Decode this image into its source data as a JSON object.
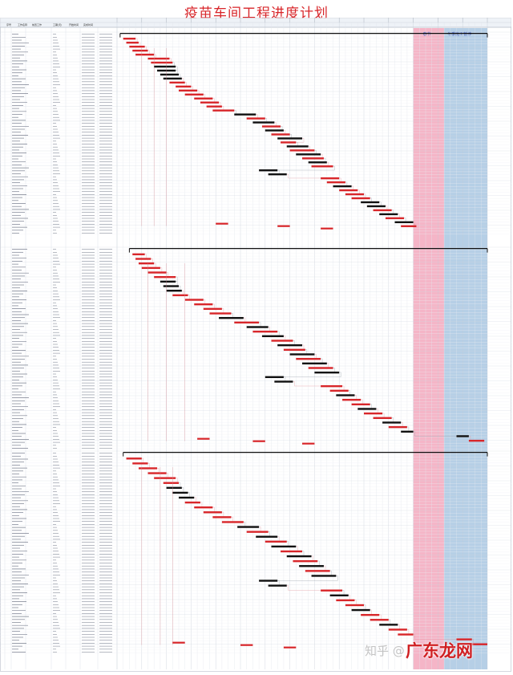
{
  "page": {
    "title": "疫苗车间工程进度计划"
  },
  "colors": {
    "critical": "#d8262a",
    "normal": "#111111",
    "holiday_pink": "#f3a8bd",
    "holiday_blue": "#a9c7e2",
    "grid": "#d7dce6",
    "text": "#333333"
  },
  "chart_data": {
    "type": "gantt",
    "title": "疫苗车间工程进度计划",
    "columns": [
      "序号",
      "工作名称",
      "前置工作",
      "工期(天)",
      "开始时间",
      "完成时间"
    ],
    "timeline": {
      "start_week": 0,
      "end_week": 60,
      "unit": "week"
    },
    "holidays": [
      {
        "name": "春节",
        "start_week": 48,
        "end_week": 53,
        "color": "pink"
      },
      {
        "name": "冬季施工暂停",
        "start_week": 53,
        "end_week": 60,
        "color": "blue"
      }
    ],
    "sections": [
      {
        "rows": 68,
        "summary": {
          "start_week": 0.5,
          "end_week": 60
        },
        "tasks": [
          [
            1,
            3,
            "c"
          ],
          [
            1.5,
            3.5,
            "c"
          ],
          [
            2,
            4.5,
            "c"
          ],
          [
            2.5,
            5,
            "c"
          ],
          [
            3,
            6,
            "c"
          ],
          [
            5,
            8.5,
            "c"
          ],
          [
            5.5,
            9,
            "c"
          ],
          [
            6,
            9.5,
            "n"
          ],
          [
            6.5,
            9.5,
            "n"
          ],
          [
            7,
            10,
            "n"
          ],
          [
            7.5,
            10.5,
            "n"
          ],
          [
            8.5,
            11,
            "c"
          ],
          [
            9.5,
            12,
            "c"
          ],
          [
            10,
            13,
            "c"
          ],
          [
            11,
            14,
            "c"
          ],
          [
            12.5,
            15.5,
            "c"
          ],
          [
            13.5,
            16.5,
            "c"
          ],
          [
            14.5,
            17,
            "c"
          ],
          [
            15.5,
            19,
            "c"
          ],
          [
            19,
            22.5,
            "n"
          ],
          [
            21,
            24,
            "c"
          ],
          [
            22,
            25.5,
            "n"
          ],
          [
            23.5,
            26.5,
            "c"
          ],
          [
            24,
            27,
            "n"
          ],
          [
            25,
            28,
            "c"
          ],
          [
            26,
            30,
            "n"
          ],
          [
            26.5,
            29,
            "c"
          ],
          [
            27.5,
            31,
            "n"
          ],
          [
            28,
            32,
            "c"
          ],
          [
            29,
            33,
            "n"
          ],
          [
            30,
            33.5,
            "c"
          ],
          [
            31,
            34,
            "n"
          ],
          [
            31.5,
            35,
            "c"
          ],
          [
            23,
            26,
            "n"
          ],
          [
            24.5,
            27.5,
            "n"
          ],
          [
            33,
            36,
            "c"
          ],
          [
            34,
            37,
            "c"
          ],
          [
            35,
            38,
            "n"
          ],
          [
            36,
            39,
            "c"
          ],
          [
            37,
            40,
            "c"
          ],
          [
            38,
            41,
            "c"
          ],
          [
            39.5,
            42.5,
            "n"
          ],
          [
            40.5,
            43.5,
            "n"
          ],
          [
            41.5,
            44.5,
            "c"
          ],
          [
            42.5,
            45.5,
            "n"
          ],
          [
            43.5,
            46.5,
            "c"
          ],
          [
            45,
            48,
            "n"
          ],
          [
            46,
            48.5,
            "c"
          ]
        ]
      },
      {
        "rows": 68,
        "summary": {
          "start_week": 2,
          "end_week": 60
        },
        "tasks": [
          [
            2.5,
            4.5,
            "c"
          ],
          [
            3,
            5.5,
            "c"
          ],
          [
            3.5,
            6,
            "c"
          ],
          [
            4,
            7,
            "c"
          ],
          [
            5,
            8,
            "c"
          ],
          [
            6,
            9.5,
            "c"
          ],
          [
            7,
            9.5,
            "n"
          ],
          [
            7.5,
            10,
            "n"
          ],
          [
            8,
            10.5,
            "n"
          ],
          [
            9,
            11.5,
            "c"
          ],
          [
            11,
            14,
            "c"
          ],
          [
            12.5,
            15.5,
            "c"
          ],
          [
            14,
            17,
            "c"
          ],
          [
            15,
            18.5,
            "c"
          ],
          [
            16.5,
            20.5,
            "n"
          ],
          [
            19,
            23,
            "c"
          ],
          [
            21,
            24.5,
            "n"
          ],
          [
            22,
            26,
            "c"
          ],
          [
            23.5,
            27,
            "n"
          ],
          [
            25,
            28.5,
            "c"
          ],
          [
            26,
            30,
            "n"
          ],
          [
            27,
            30.5,
            "c"
          ],
          [
            28,
            32,
            "n"
          ],
          [
            29,
            33,
            "c"
          ],
          [
            30,
            34,
            "n"
          ],
          [
            31,
            35,
            "c"
          ],
          [
            32,
            36,
            "n"
          ],
          [
            24,
            27,
            "n"
          ],
          [
            25.5,
            28.5,
            "n"
          ],
          [
            33,
            36.5,
            "c"
          ],
          [
            34.5,
            37.5,
            "c"
          ],
          [
            35.5,
            38.5,
            "n"
          ],
          [
            36.5,
            39.5,
            "c"
          ],
          [
            38,
            41,
            "c"
          ],
          [
            39,
            42,
            "n"
          ],
          [
            40,
            43,
            "c"
          ],
          [
            41.5,
            44.5,
            "c"
          ],
          [
            43,
            46,
            "n"
          ],
          [
            44,
            47,
            "c"
          ],
          [
            46,
            48,
            "n"
          ],
          [
            55,
            57,
            "n"
          ],
          [
            57,
            59.5,
            "c"
          ]
        ]
      },
      {
        "rows": 68,
        "summary": {
          "start_week": 1,
          "end_week": 60
        },
        "tasks": [
          [
            1.5,
            4,
            "c"
          ],
          [
            2.5,
            5,
            "c"
          ],
          [
            3.5,
            6.5,
            "c"
          ],
          [
            5,
            8,
            "c"
          ],
          [
            6,
            9.5,
            "c"
          ],
          [
            7.5,
            10,
            "c"
          ],
          [
            8,
            10.5,
            "n"
          ],
          [
            9,
            11.5,
            "n"
          ],
          [
            10,
            12.5,
            "n"
          ],
          [
            11,
            13.5,
            "c"
          ],
          [
            12.5,
            15.5,
            "c"
          ],
          [
            14,
            17,
            "c"
          ],
          [
            15.5,
            18.5,
            "c"
          ],
          [
            17,
            20.5,
            "c"
          ],
          [
            19.5,
            23,
            "n"
          ],
          [
            21,
            24.5,
            "c"
          ],
          [
            22.5,
            26,
            "n"
          ],
          [
            24,
            27.5,
            "c"
          ],
          [
            25,
            29,
            "n"
          ],
          [
            26.5,
            30,
            "c"
          ],
          [
            27.5,
            31.5,
            "n"
          ],
          [
            28.5,
            32.5,
            "c"
          ],
          [
            29.5,
            33.5,
            "n"
          ],
          [
            30.5,
            34.5,
            "c"
          ],
          [
            31.5,
            35.5,
            "n"
          ],
          [
            23,
            26,
            "n"
          ],
          [
            24.5,
            27.5,
            "n"
          ],
          [
            33,
            36.5,
            "c"
          ],
          [
            34.5,
            37.5,
            "n"
          ],
          [
            35.5,
            38.5,
            "c"
          ],
          [
            37,
            40,
            "c"
          ],
          [
            38,
            41,
            "n"
          ],
          [
            39.5,
            42.5,
            "c"
          ],
          [
            41,
            44,
            "c"
          ],
          [
            42.5,
            45.5,
            "n"
          ],
          [
            44,
            47,
            "c"
          ],
          [
            45.5,
            48,
            "c"
          ],
          [
            55,
            57.5,
            "c"
          ],
          [
            57.5,
            60,
            "c"
          ]
        ]
      }
    ]
  },
  "holiday_labels": {
    "pink": "春节",
    "blue": "冬季施工暂停"
  },
  "watermark": {
    "text": "知乎 @",
    "brand": "广东龙网"
  }
}
